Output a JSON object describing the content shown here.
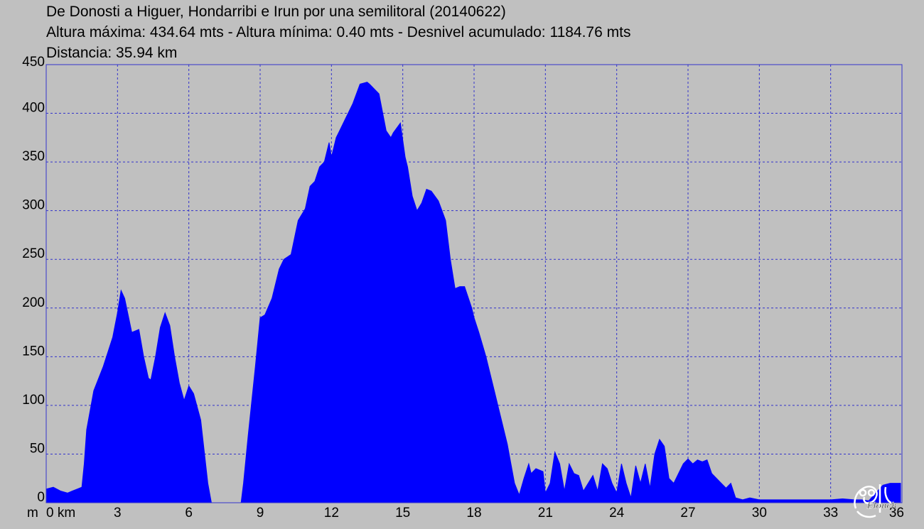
{
  "header": {
    "title": "De Donosti a Higuer, Hondarribi e Irun por una semilitoral (20140622)",
    "stats": "Altura máxima: 434.64 mts - Altura mínima: 0.40 mts - Desnivel acumulado: 1184.76 mts",
    "distance": "Distancia: 35.94 km"
  },
  "chart_data": {
    "type": "area",
    "title": "De Donosti a Higuer, Hondarribi e Irun por una semilitoral (20140622)",
    "xlabel": "km",
    "ylabel": "m",
    "xlim": [
      0,
      36
    ],
    "ylim": [
      0,
      450
    ],
    "x_ticks": [
      0,
      3,
      6,
      9,
      12,
      15,
      18,
      21,
      24,
      27,
      30,
      33,
      36
    ],
    "x_tick_labels": [
      "0 km",
      "3",
      "6",
      "9",
      "12",
      "15",
      "18",
      "21",
      "24",
      "27",
      "30",
      "33",
      "36"
    ],
    "y_ticks": [
      0,
      50,
      100,
      150,
      200,
      250,
      300,
      350,
      400,
      450
    ],
    "grid": true,
    "fill_color": "#0000ff",
    "grid_color": "#3333cc",
    "background": "#c0c0c0",
    "x": [
      0,
      0.3,
      0.6,
      0.9,
      1.1,
      1.3,
      1.5,
      1.6,
      1.7,
      2.0,
      2.4,
      2.8,
      3.0,
      3.15,
      3.3,
      3.6,
      3.9,
      4.1,
      4.3,
      4.4,
      4.6,
      4.8,
      5.0,
      5.2,
      5.4,
      5.6,
      5.8,
      6.0,
      6.2,
      6.5,
      6.8,
      6.95,
      7.1,
      8.2,
      8.3,
      8.5,
      8.8,
      9.0,
      9.2,
      9.5,
      9.8,
      10.0,
      10.3,
      10.6,
      10.9,
      11.1,
      11.3,
      11.5,
      11.7,
      11.9,
      12.0,
      12.2,
      12.3,
      12.6,
      12.9,
      13.2,
      13.5,
      13.6,
      14.0,
      14.3,
      14.5,
      14.6,
      14.9,
      15.1,
      15.2,
      15.4,
      15.6,
      15.8,
      16.0,
      16.2,
      16.5,
      16.8,
      17.0,
      17.2,
      17.4,
      17.6,
      17.9,
      18.0,
      18.2,
      18.5,
      18.8,
      19.1,
      19.4,
      19.7,
      19.9,
      20.1,
      20.3,
      20.4,
      20.6,
      20.9,
      21.0,
      21.2,
      21.4,
      21.6,
      21.8,
      22.0,
      22.2,
      22.4,
      22.6,
      22.8,
      23.0,
      23.2,
      23.4,
      23.6,
      23.8,
      24.0,
      24.2,
      24.4,
      24.6,
      24.8,
      25.0,
      25.2,
      25.4,
      25.6,
      25.8,
      26.0,
      26.2,
      26.4,
      26.6,
      26.8,
      27.0,
      27.2,
      27.4,
      27.6,
      27.8,
      28.0,
      28.2,
      28.4,
      28.6,
      28.8,
      29.0,
      29.3,
      29.6,
      30.0,
      30.5,
      31.0,
      31.5,
      32.0,
      32.5,
      33.0,
      33.5,
      34.0,
      34.3,
      34.6,
      34.9,
      35.2,
      35.5,
      35.94
    ],
    "y": [
      14,
      16,
      12,
      10,
      12,
      14,
      16,
      40,
      75,
      115,
      140,
      170,
      195,
      218,
      210,
      175,
      178,
      150,
      128,
      126,
      150,
      180,
      195,
      182,
      150,
      123,
      105,
      120,
      112,
      85,
      20,
      0,
      0,
      0,
      20,
      70,
      140,
      190,
      193,
      210,
      240,
      250,
      255,
      290,
      302,
      325,
      330,
      345,
      350,
      370,
      355,
      375,
      380,
      395,
      410,
      430,
      432,
      430,
      420,
      382,
      375,
      380,
      390,
      355,
      345,
      315,
      300,
      308,
      322,
      320,
      310,
      290,
      250,
      220,
      222,
      222,
      200,
      190,
      175,
      150,
      120,
      90,
      60,
      20,
      8,
      25,
      40,
      30,
      35,
      32,
      10,
      20,
      52,
      40,
      12,
      40,
      30,
      28,
      12,
      20,
      28,
      12,
      40,
      35,
      20,
      10,
      40,
      20,
      5,
      38,
      20,
      40,
      15,
      50,
      65,
      58,
      25,
      20,
      30,
      40,
      45,
      40,
      44,
      42,
      44,
      30,
      25,
      20,
      15,
      20,
      5,
      3,
      5,
      3,
      3,
      3,
      3,
      3,
      3,
      3,
      4,
      3,
      3,
      2,
      10,
      18,
      20,
      20
    ]
  },
  "watermark": {
    "text": "Eloncho"
  }
}
